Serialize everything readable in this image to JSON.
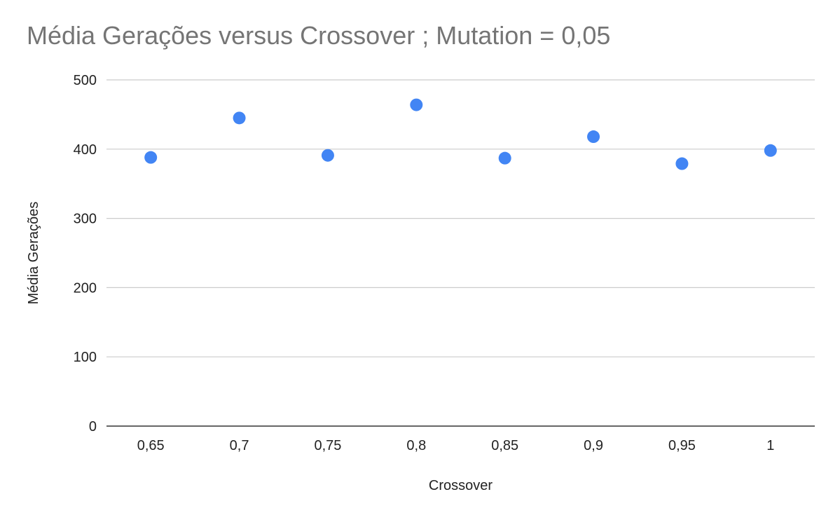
{
  "chart_data": {
    "type": "scatter",
    "title": "Média Gerações versus Crossover ; Mutation = 0,05",
    "xlabel": "Crossover",
    "ylabel": "Média Gerações",
    "x_tick_labels": [
      "0,65",
      "0,7",
      "0,75",
      "0,8",
      "0,85",
      "0,9",
      "0,95",
      "1"
    ],
    "y_tick_labels": [
      "0",
      "100",
      "200",
      "300",
      "400",
      "500"
    ],
    "ylim": [
      0,
      500
    ],
    "grid": true,
    "legend": "none",
    "series": [
      {
        "color": "#4285f4",
        "x": [
          0.65,
          0.7,
          0.75,
          0.8,
          0.85,
          0.9,
          0.95,
          1.0
        ],
        "y": [
          388,
          445,
          391,
          464,
          387,
          418,
          379,
          398
        ]
      }
    ]
  },
  "colors": {
    "marker": "#4285f4",
    "gridline": "#cccccc",
    "axis": "#333333",
    "title": "#757575"
  }
}
